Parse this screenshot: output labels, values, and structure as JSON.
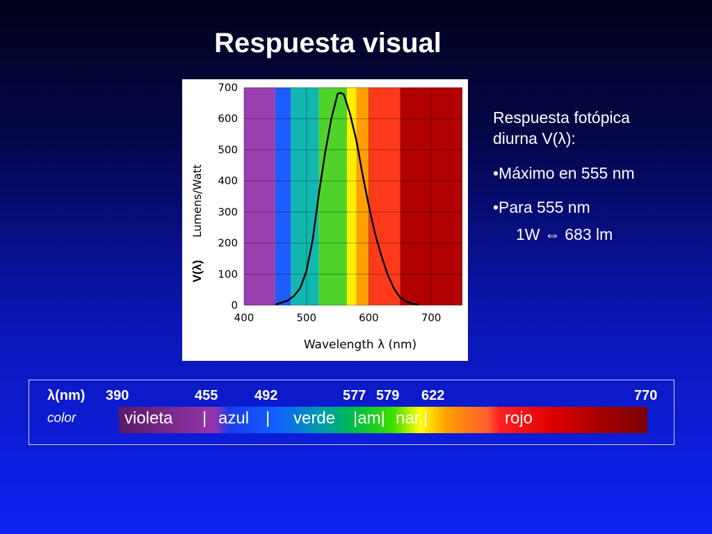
{
  "slide_title": "Respuesta visual",
  "chart_data": {
    "type": "line",
    "xlabel": "Wavelength λ (nm)",
    "ylabel": "Lumens/Watt",
    "ylabel_symbol": "V(λ)",
    "xlim": [
      400,
      750
    ],
    "ylim": [
      0,
      700
    ],
    "x_ticks": [
      400,
      500,
      600,
      700
    ],
    "y_ticks": [
      0,
      100,
      200,
      300,
      400,
      500,
      600,
      700
    ],
    "grid": true,
    "background_spectrum": [
      {
        "from": 400,
        "to": 450,
        "color": "#9a3fb0"
      },
      {
        "from": 450,
        "to": 475,
        "color": "#1f5cff"
      },
      {
        "from": 475,
        "to": 520,
        "color": "#12b8b0"
      },
      {
        "from": 520,
        "to": 565,
        "color": "#4fd32a"
      },
      {
        "from": 565,
        "to": 580,
        "color": "#ffee00"
      },
      {
        "from": 580,
        "to": 600,
        "color": "#ffa000"
      },
      {
        "from": 600,
        "to": 650,
        "color": "#ff3a1a"
      },
      {
        "from": 650,
        "to": 750,
        "color": "#b00000"
      }
    ],
    "series": [
      {
        "x": [
          450,
          470,
          480,
          490,
          500,
          510,
          520,
          530,
          540,
          550,
          555,
          560,
          570,
          580,
          590,
          600,
          610,
          620,
          630,
          640,
          650,
          660,
          670,
          680
        ],
        "y": [
          2,
          15,
          30,
          55,
          110,
          210,
          360,
          490,
          600,
          680,
          683,
          678,
          615,
          530,
          420,
          320,
          230,
          160,
          100,
          55,
          25,
          12,
          5,
          2
        ]
      }
    ]
  },
  "info": {
    "line1": "Respuesta fotópica",
    "line2": "diurna V(λ):",
    "bullet1": "•Máximo en 555 nm",
    "bullet2": "•Para 555 nm",
    "equivalence": "1W  ⇔  683 lm"
  },
  "legend": {
    "lambda_label": "λ(nm)",
    "boundaries": [
      "390",
      "455",
      "492",
      "577",
      "579",
      "622",
      "770"
    ],
    "color_label": "color",
    "bands_text": [
      "violeta",
      "|",
      "azul",
      "|",
      "verde",
      "|am|",
      "nar.|",
      "rojo"
    ]
  },
  "colors": {
    "curve": "#000000",
    "grid": "#000000",
    "tick_text": "#000000"
  }
}
